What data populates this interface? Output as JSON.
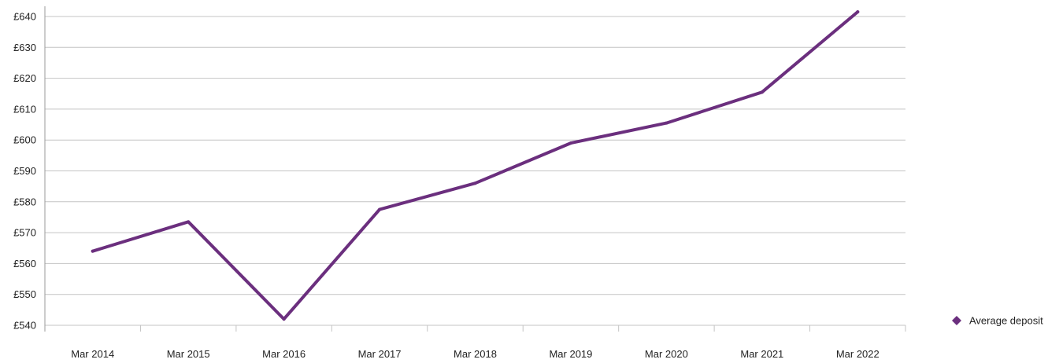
{
  "chart_data": {
    "type": "line",
    "categories": [
      "Mar 2014",
      "Mar 2015",
      "Mar 2016",
      "Mar 2017",
      "Mar 2018",
      "Mar 2019",
      "Mar 2020",
      "Mar 2021",
      "Mar 2022"
    ],
    "series": [
      {
        "name": "Average deposit",
        "values": [
          564,
          573.5,
          542,
          577.5,
          586,
          599,
          605.5,
          615.5,
          641.5
        ],
        "color": "#6b2f7e"
      }
    ],
    "y_ticks": [
      "£540",
      "£550",
      "£560",
      "£570",
      "£580",
      "£590",
      "£600",
      "£610",
      "£620",
      "£630",
      "£640"
    ],
    "ylim": [
      540,
      640
    ],
    "grid": true,
    "legend_position": "right"
  }
}
